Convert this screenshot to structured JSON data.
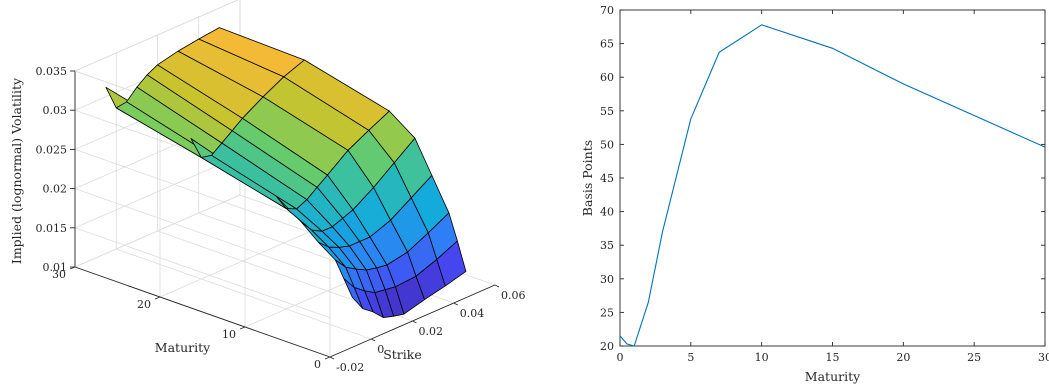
{
  "chart_data": [
    {
      "type": "surface",
      "xlabel": "Strike",
      "ylabel": "Maturity",
      "zlabel": "Implied (lognormal) Volatility",
      "x_ticks": [
        "-0.02",
        "0",
        "0.02",
        "0.04",
        "0.06"
      ],
      "y_ticks": [
        "0",
        "10",
        "20",
        "30"
      ],
      "z_ticks": [
        "0.01",
        "0.015",
        "0.02",
        "0.025",
        "0.03",
        "0.035"
      ],
      "xlim": [
        -0.02,
        0.06
      ],
      "ylim": [
        0,
        30
      ],
      "zlim": [
        0.01,
        0.035
      ],
      "grid": true,
      "colormap": "parula",
      "strikes": [
        -0.005,
        0.0,
        0.005,
        0.01,
        0.015,
        0.02,
        0.03,
        0.04,
        0.05
      ],
      "maturities": [
        1,
        2,
        3,
        5,
        7,
        10,
        20,
        30
      ],
      "z": [
        [
          0.0155,
          0.0135,
          0.0125,
          0.0112,
          0.0108,
          0.0105,
          0.0112,
          0.0118,
          0.0125
        ],
        [
          0.0175,
          0.0158,
          0.0148,
          0.014,
          0.0138,
          0.0136,
          0.0138,
          0.0148,
          0.016
        ],
        [
          0.0195,
          0.018,
          0.0172,
          0.0165,
          0.0162,
          0.016,
          0.0165,
          0.0178,
          0.0192
        ],
        [
          0.021,
          0.0198,
          0.0192,
          0.0188,
          0.0188,
          0.0188,
          0.0198,
          0.0215,
          0.0232
        ],
        [
          0.0228,
          0.0212,
          0.0205,
          0.0205,
          0.021,
          0.0215,
          0.0232,
          0.0252,
          0.0272
        ],
        [
          0.025,
          0.0228,
          0.0222,
          0.0228,
          0.0238,
          0.0248,
          0.0268,
          0.0282,
          0.0295
        ],
        [
          0.0285,
          0.0255,
          0.0252,
          0.0262,
          0.0272,
          0.0282,
          0.0298,
          0.0312,
          0.0322
        ],
        [
          0.0312,
          0.028,
          0.0282,
          0.0295,
          0.0305,
          0.0312,
          0.0318,
          0.0322,
          0.0325
        ]
      ]
    },
    {
      "type": "line",
      "xlabel": "Maturity",
      "ylabel": "Basis Points",
      "xlim": [
        0,
        30
      ],
      "ylim": [
        20,
        70
      ],
      "x_ticks": [
        "0",
        "5",
        "10",
        "15",
        "20",
        "25",
        "30"
      ],
      "y_ticks": [
        "20",
        "25",
        "30",
        "35",
        "40",
        "45",
        "50",
        "55",
        "60",
        "65",
        "70"
      ],
      "grid": false,
      "series": [
        {
          "color": "#0072BD",
          "x": [
            0,
            0.5,
            1,
            2,
            3,
            5,
            7,
            10,
            15,
            20,
            30
          ],
          "y": [
            21.5,
            20.3,
            20.0,
            26.5,
            37.0,
            53.8,
            63.7,
            67.8,
            64.3,
            59.0,
            49.6
          ]
        }
      ]
    }
  ]
}
